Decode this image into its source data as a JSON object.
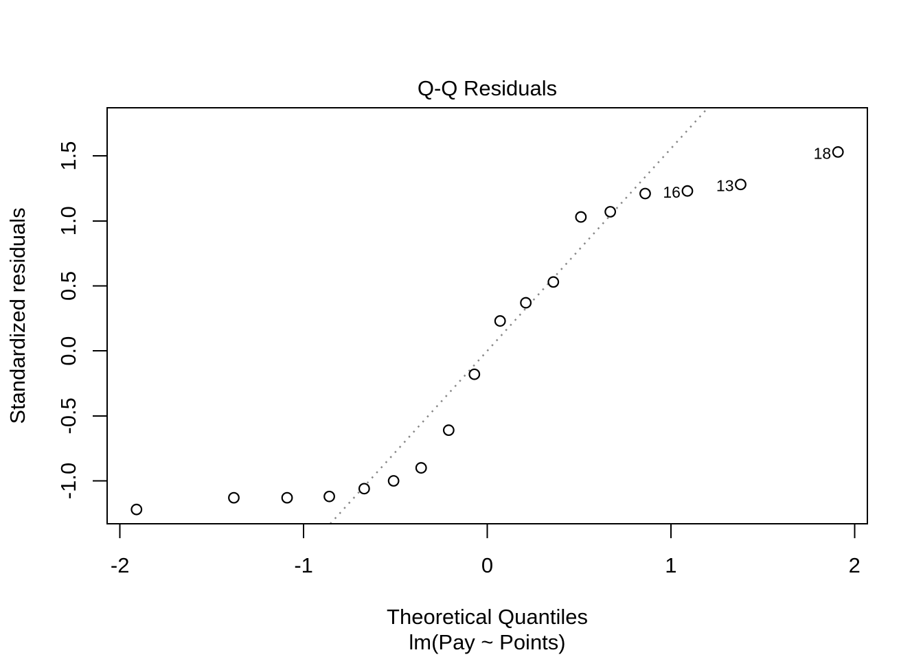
{
  "page": {
    "background": "#ffffff",
    "foreground": "#000000"
  },
  "chart_data": {
    "type": "scatter",
    "title": "Q-Q Residuals",
    "xlabel": "Theoretical Quantiles",
    "model_label": "lm(Pay ~ Points)",
    "ylabel": "Standardized residuals",
    "xlim": [
      -2.07,
      2.07
    ],
    "ylim": [
      -1.33,
      1.87
    ],
    "grid": false,
    "legend": null,
    "x_ticks": [
      {
        "value": -2,
        "label": "-2"
      },
      {
        "value": -1,
        "label": "-1"
      },
      {
        "value": 0,
        "label": "0"
      },
      {
        "value": 1,
        "label": "1"
      },
      {
        "value": 2,
        "label": "2"
      }
    ],
    "y_ticks": [
      {
        "value": -1.0,
        "label": "-1.0"
      },
      {
        "value": -0.5,
        "label": "-0.5"
      },
      {
        "value": 0.0,
        "label": "0.0"
      },
      {
        "value": 0.5,
        "label": "0.5"
      },
      {
        "value": 1.0,
        "label": "1.0"
      },
      {
        "value": 1.5,
        "label": "1.5"
      }
    ],
    "marker": {
      "shape": "open-circle",
      "color": "#000000",
      "fill": "#ffffff"
    },
    "reference_line": {
      "type": "qqline",
      "slope": 1.556,
      "intercept": 0.0,
      "style": "dotted",
      "color": "#878787"
    },
    "points": [
      {
        "x": -1.91,
        "y": -1.22
      },
      {
        "x": -1.38,
        "y": -1.13
      },
      {
        "x": -1.09,
        "y": -1.13
      },
      {
        "x": -0.86,
        "y": -1.12
      },
      {
        "x": -0.67,
        "y": -1.06
      },
      {
        "x": -0.51,
        "y": -1.0
      },
      {
        "x": -0.36,
        "y": -0.9
      },
      {
        "x": -0.21,
        "y": -0.61
      },
      {
        "x": -0.07,
        "y": -0.18
      },
      {
        "x": 0.07,
        "y": 0.23
      },
      {
        "x": 0.21,
        "y": 0.37
      },
      {
        "x": 0.36,
        "y": 0.53
      },
      {
        "x": 0.51,
        "y": 1.03
      },
      {
        "x": 0.67,
        "y": 1.07
      },
      {
        "x": 0.86,
        "y": 1.21
      },
      {
        "x": 1.09,
        "y": 1.23,
        "label": "16"
      },
      {
        "x": 1.38,
        "y": 1.28,
        "label": "13"
      },
      {
        "x": 1.91,
        "y": 1.53,
        "label": "18"
      }
    ]
  }
}
